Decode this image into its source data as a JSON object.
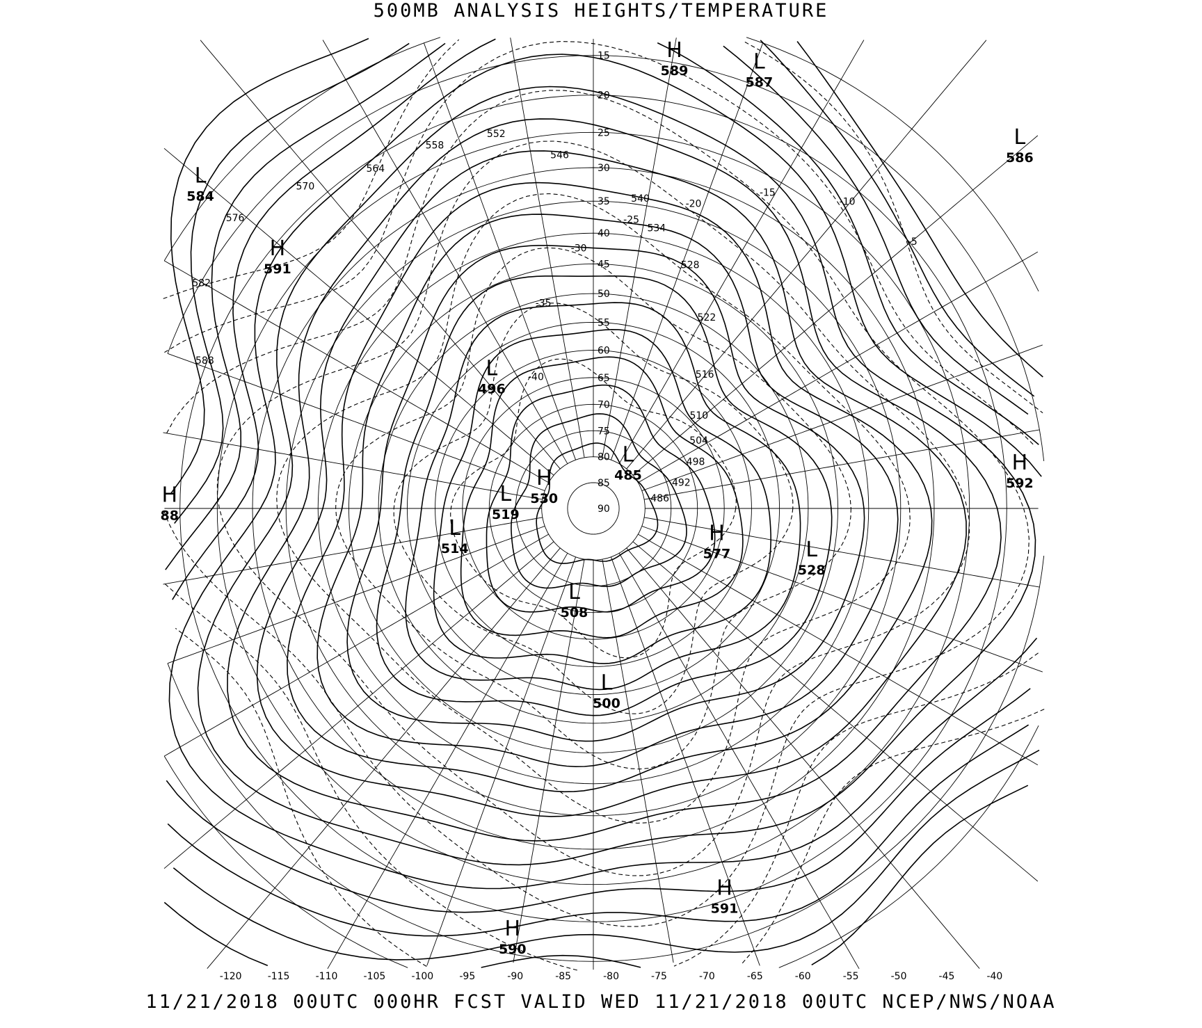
{
  "header": {
    "title": "500MB ANALYSIS  HEIGHTS/TEMPERATURE"
  },
  "footer": {
    "text": "11/21/2018 00UTC 000HR FCST VALID WED 11/21/2018 00UTC  NCEP/NWS/NOAA"
  },
  "map": {
    "projection": "north polar stereographic",
    "latitude_labels": [
      "15",
      "20",
      "25",
      "30",
      "35",
      "40",
      "45",
      "50",
      "55",
      "60",
      "65",
      "70",
      "75",
      "80",
      "85",
      "90"
    ],
    "longitude_labels": [
      "-120",
      "-115",
      "-110",
      "-105",
      "-100",
      "-95",
      "-90",
      "-85",
      "-80",
      "-75",
      "-70",
      "-65",
      "-60",
      "-55",
      "-50",
      "-45",
      "-40"
    ],
    "pressure_centers": [
      {
        "type": "H",
        "value": "589"
      },
      {
        "type": "L",
        "value": "587"
      },
      {
        "type": "L",
        "value": "586"
      },
      {
        "type": "L",
        "value": "584"
      },
      {
        "type": "H",
        "value": "591"
      },
      {
        "type": "L",
        "value": "496"
      },
      {
        "type": "H",
        "value": "88"
      },
      {
        "type": "L",
        "value": "514"
      },
      {
        "type": "L",
        "value": "519"
      },
      {
        "type": "H",
        "value": "530"
      },
      {
        "type": "L",
        "value": "485"
      },
      {
        "type": "H",
        "value": "577"
      },
      {
        "type": "L",
        "value": "528"
      },
      {
        "type": "H",
        "value": "592"
      },
      {
        "type": "L",
        "value": "508"
      },
      {
        "type": "L",
        "value": "500"
      },
      {
        "type": "H",
        "value": "591"
      },
      {
        "type": "H",
        "value": "590"
      }
    ],
    "height_contour_labels": [
      "588",
      "582",
      "576",
      "570",
      "564",
      "558",
      "552",
      "546",
      "540",
      "534",
      "528",
      "522",
      "516",
      "510",
      "504",
      "498",
      "492",
      "486"
    ],
    "temperature_contour_labels": [
      "-5",
      "-10",
      "-15",
      "-20",
      "-25",
      "-30",
      "-35",
      "-40"
    ],
    "line_color": "#000000"
  }
}
